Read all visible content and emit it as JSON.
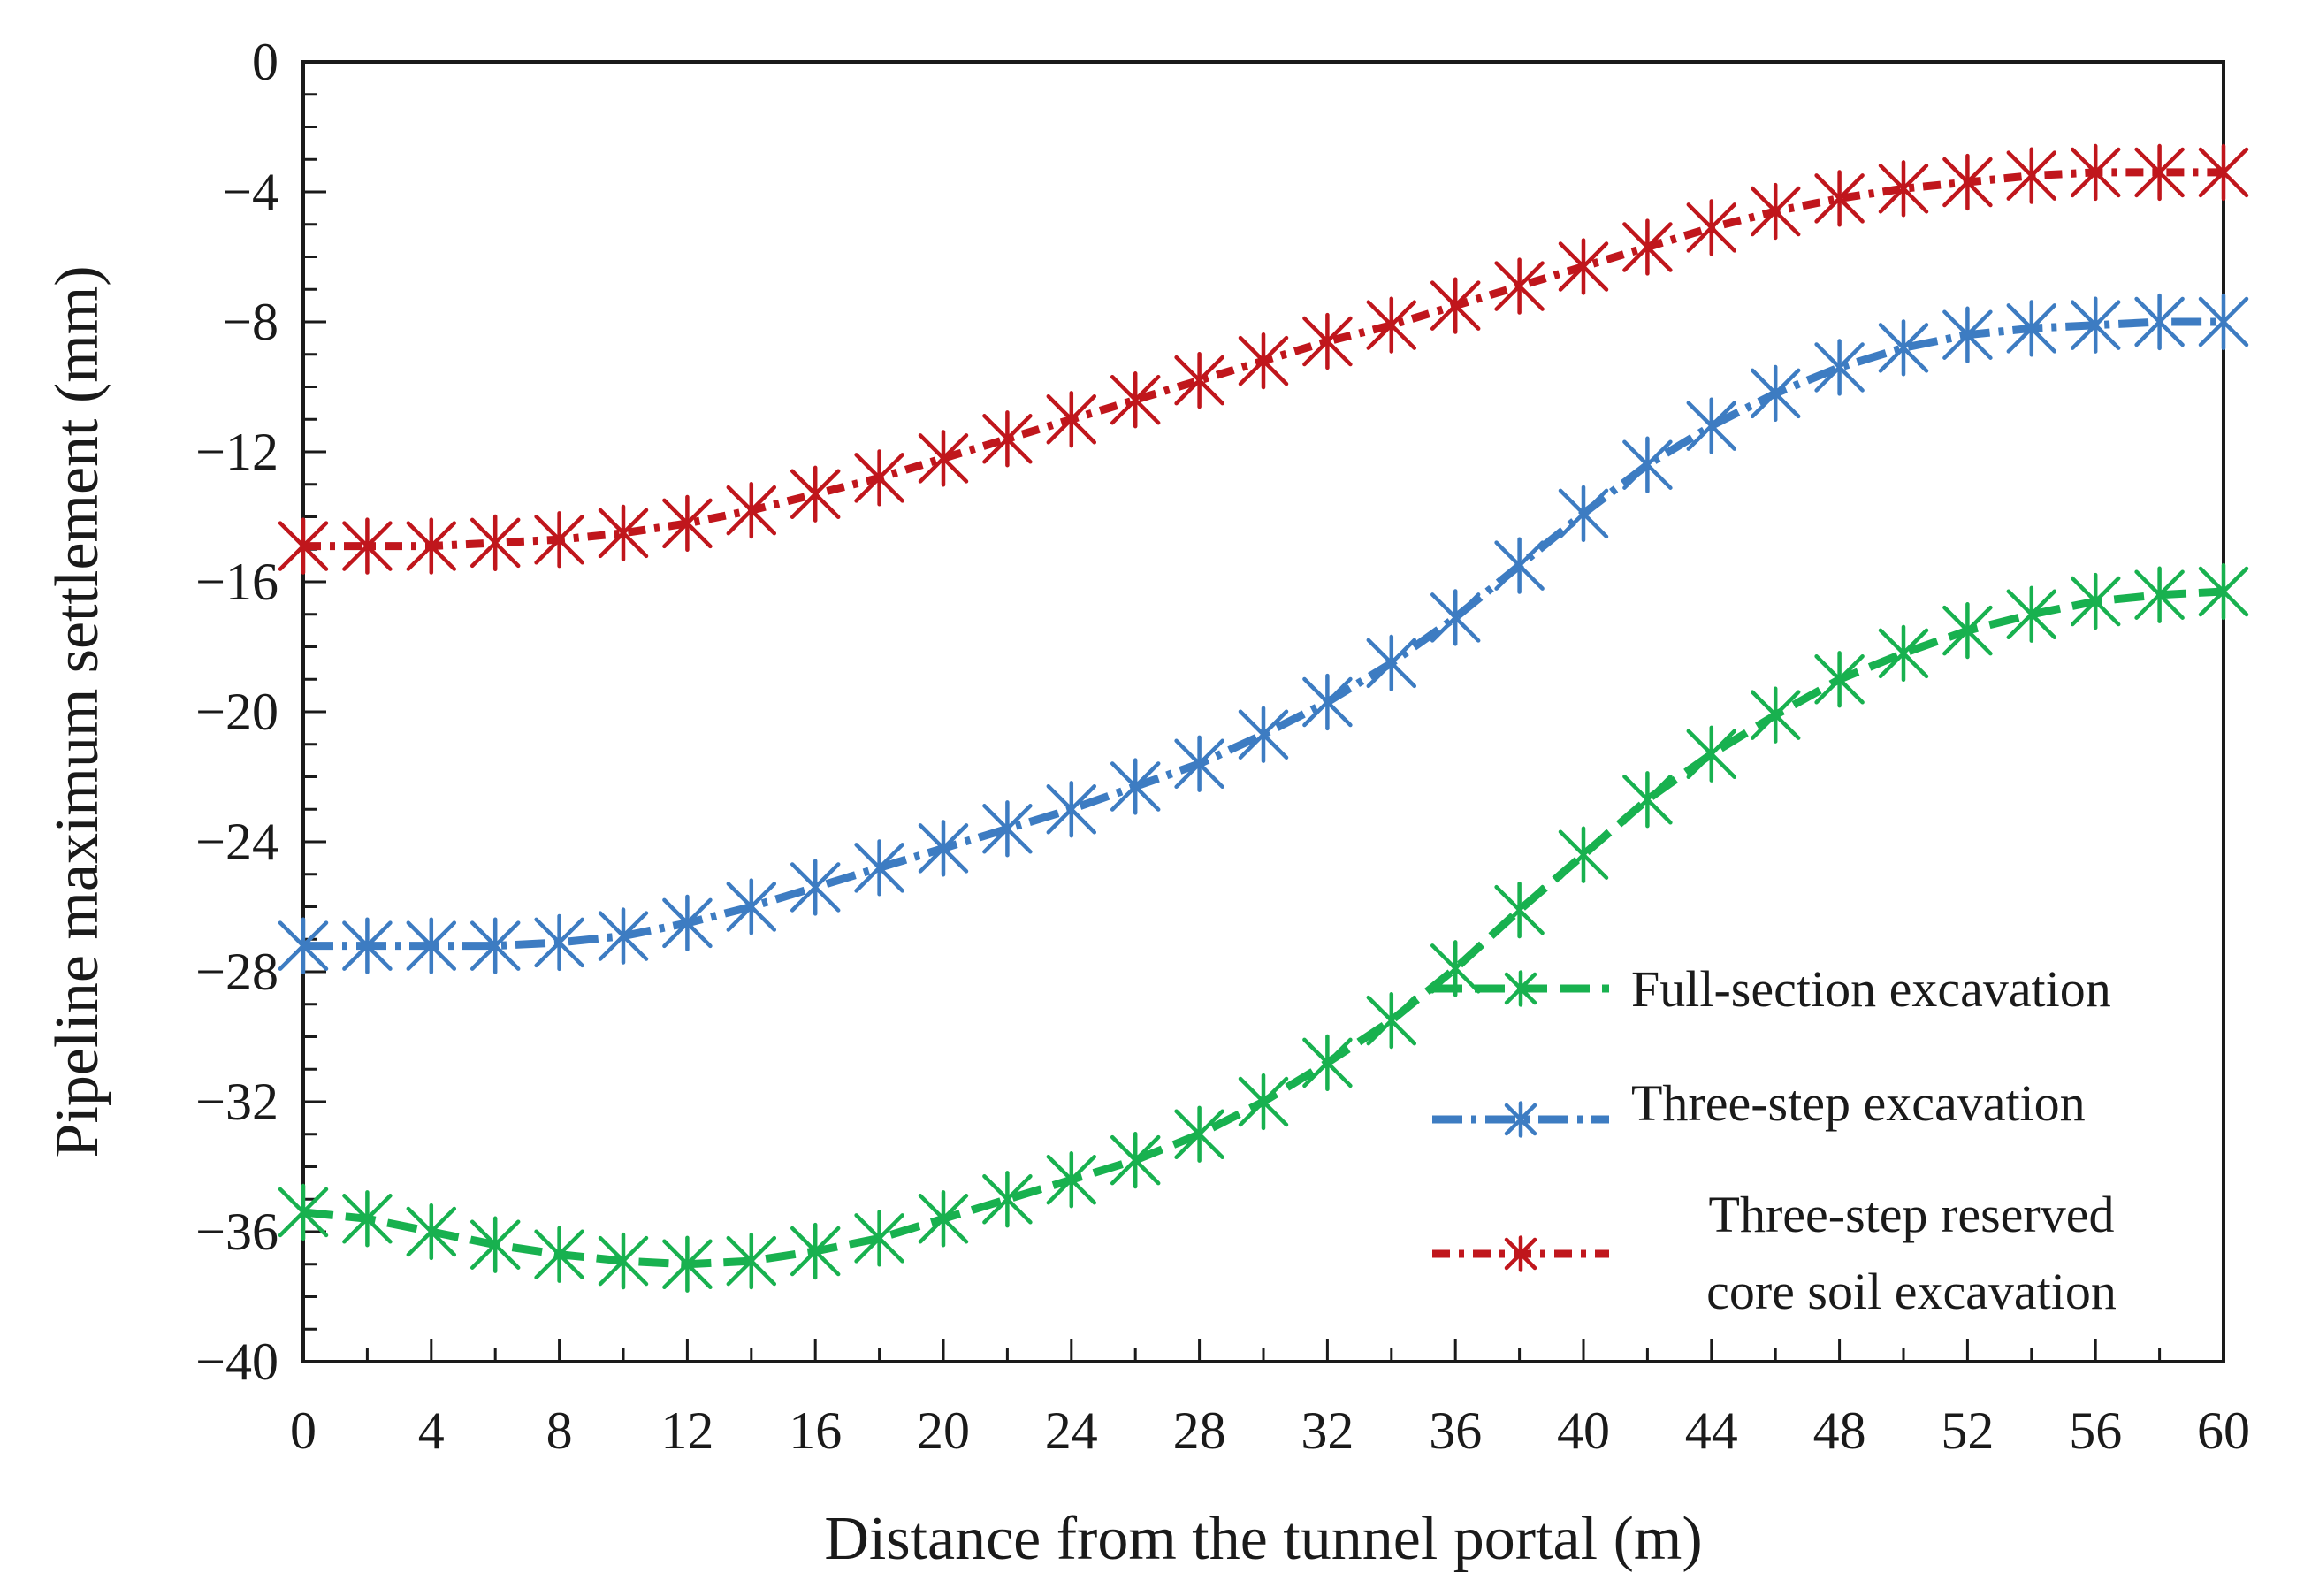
{
  "chart_data": {
    "type": "line",
    "title": "",
    "xlabel": "Distance from the tunnel portal (m)",
    "ylabel": "Pipeline maximum settlement (mm)",
    "xlim": [
      0,
      60
    ],
    "ylim": [
      -40,
      0
    ],
    "xticks": [
      "0",
      "4",
      "8",
      "12",
      "16",
      "20",
      "24",
      "28",
      "32",
      "36",
      "40",
      "44",
      "48",
      "52",
      "56",
      "60"
    ],
    "yticks": [
      "0",
      "-4",
      "-8",
      "-12",
      "-16",
      "-20",
      "-24",
      "-28",
      "-32",
      "-36",
      "-40"
    ],
    "grid": false,
    "legend_position": "bottom-right",
    "x": [
      0,
      2,
      4,
      6,
      8,
      10,
      12,
      14,
      16,
      18,
      20,
      22,
      24,
      26,
      28,
      30,
      32,
      34,
      36,
      38,
      40,
      42,
      44,
      46,
      48,
      50,
      52,
      54,
      56,
      58,
      60
    ],
    "series": [
      {
        "name": "Full-section excavation",
        "color": "#18b14f",
        "values": [
          -35.4,
          -35.6,
          -36.0,
          -36.4,
          -36.7,
          -36.9,
          -37.0,
          -36.9,
          -36.6,
          -36.2,
          -35.6,
          -35.0,
          -34.4,
          -33.8,
          -33.0,
          -32.0,
          -30.8,
          -29.5,
          -27.9,
          -26.1,
          -24.4,
          -22.7,
          -21.3,
          -20.1,
          -19.0,
          -18.2,
          -17.5,
          -17.0,
          -16.6,
          -16.4,
          -16.3
        ]
      },
      {
        "name": "Three-step excavation",
        "color": "#3d7cc2",
        "values": [
          -27.2,
          -27.2,
          -27.2,
          -27.2,
          -27.1,
          -26.9,
          -26.5,
          -26.0,
          -25.4,
          -24.8,
          -24.2,
          -23.6,
          -23.0,
          -22.3,
          -21.6,
          -20.7,
          -19.7,
          -18.5,
          -17.1,
          -15.5,
          -13.9,
          -12.4,
          -11.2,
          -10.2,
          -9.4,
          -8.8,
          -8.4,
          -8.2,
          -8.1,
          -8.0,
          -8.0
        ]
      },
      {
        "name": "Three-step reserved core soil excavation",
        "legend_lines": [
          "Three-step reserved",
          "core soil excavation"
        ],
        "color": "#c0161c",
        "values": [
          -14.9,
          -14.9,
          -14.9,
          -14.8,
          -14.7,
          -14.5,
          -14.2,
          -13.8,
          -13.3,
          -12.8,
          -12.2,
          -11.6,
          -11.0,
          -10.4,
          -9.8,
          -9.2,
          -8.6,
          -8.1,
          -7.5,
          -6.9,
          -6.3,
          -5.7,
          -5.1,
          -4.6,
          -4.2,
          -3.9,
          -3.7,
          -3.5,
          -3.4,
          -3.4,
          -3.4
        ]
      }
    ]
  }
}
